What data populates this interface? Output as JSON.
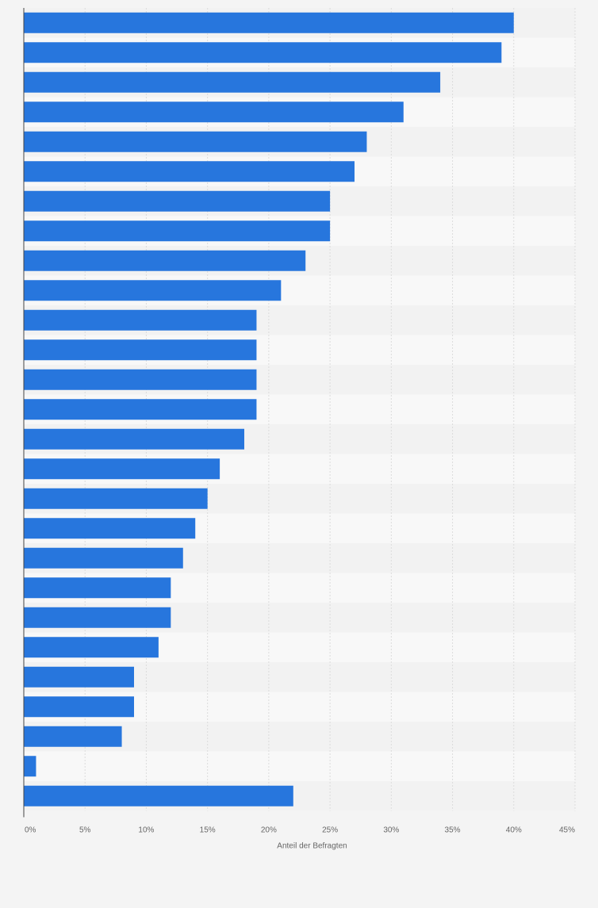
{
  "chart_data": {
    "type": "bar",
    "orientation": "horizontal",
    "values": [
      40,
      39,
      34,
      31,
      28,
      27,
      25,
      25,
      23,
      21,
      19,
      19,
      19,
      19,
      18,
      16,
      15,
      14,
      13,
      12,
      12,
      11,
      9,
      9,
      8,
      1,
      22
    ],
    "xlabel": "Anteil der Befragten",
    "xlim": [
      0,
      45
    ],
    "xticks": [
      "0%",
      "5%",
      "10%",
      "15%",
      "20%",
      "25%",
      "30%",
      "35%",
      "40%",
      "45%"
    ],
    "tick_step": 5,
    "grid": true,
    "legend": "none",
    "colors": {
      "bar": "#2776dd",
      "band_dark": "#f2f2f2",
      "band_light": "#f8f8f8",
      "grid": "#dcdcdc",
      "axis": "#444444",
      "tick_text": "#666666"
    }
  }
}
